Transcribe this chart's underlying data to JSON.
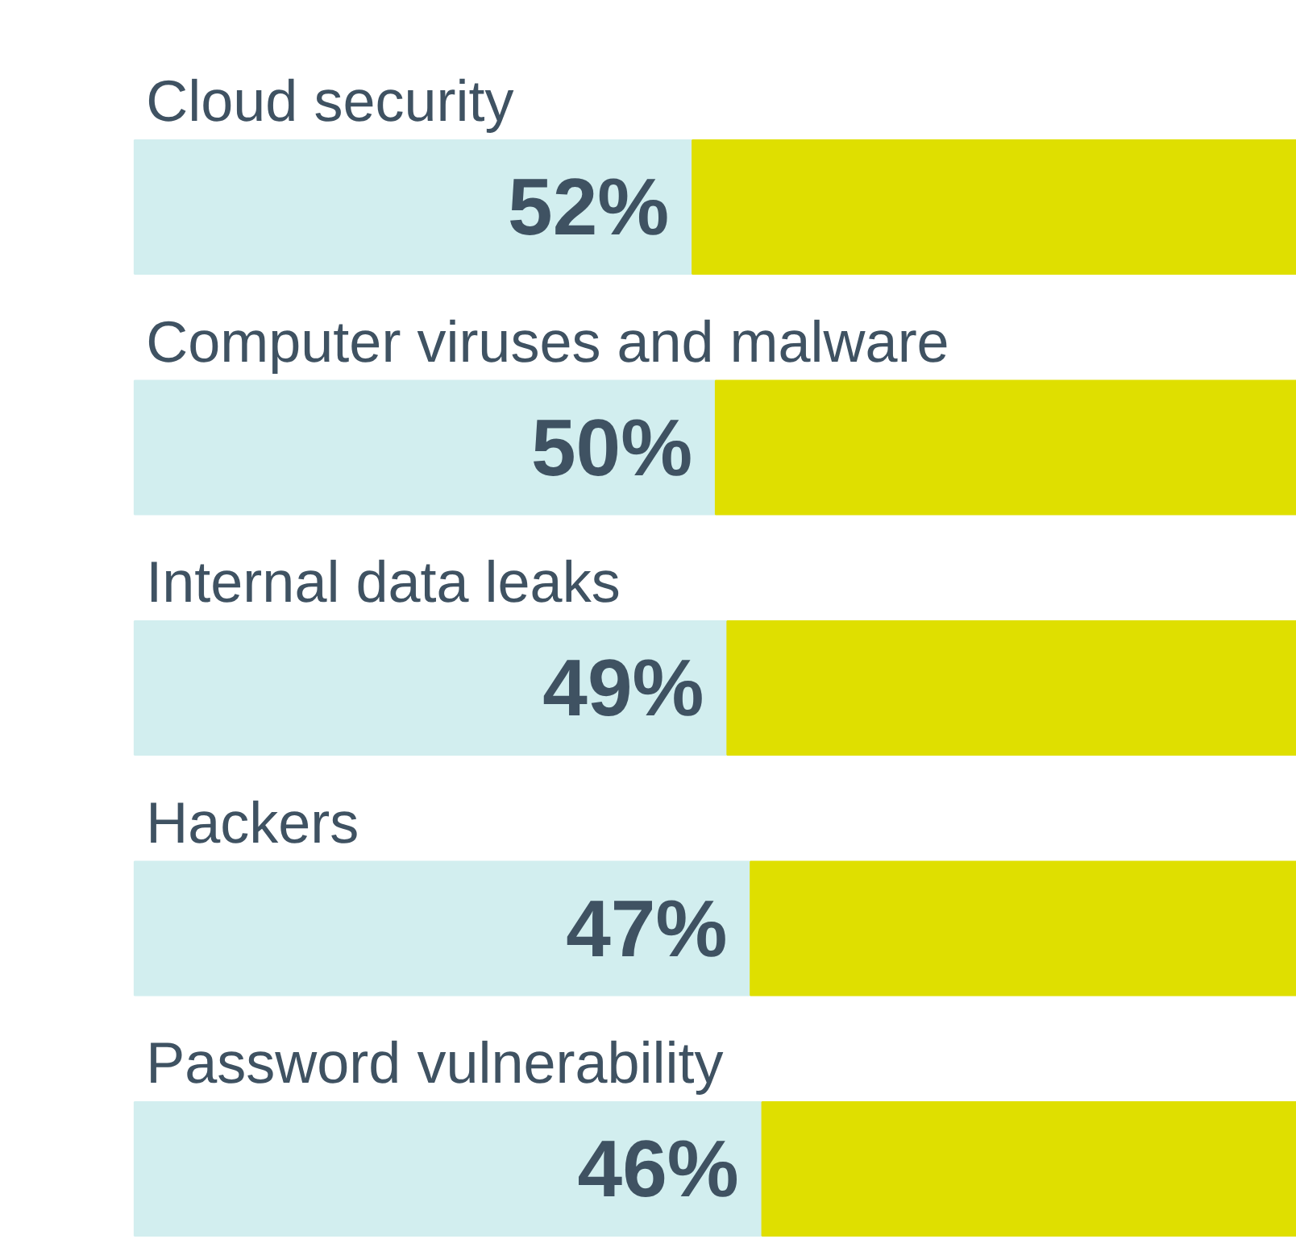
{
  "chart_data": {
    "type": "bar",
    "orientation": "horizontal",
    "stacked": true,
    "categories": [
      "Cloud security",
      "Computer viruses and malware",
      "Internal data leaks",
      "Hackers",
      "Password vulnerability"
    ],
    "series": [
      {
        "color": "#d2eeef",
        "values": [
          48,
          50,
          51,
          53,
          54
        ]
      },
      {
        "color": "#dfdf00",
        "values": [
          52,
          50,
          49,
          47,
          46
        ],
        "value_labels": [
          "52%",
          "50%",
          "49%",
          "47%",
          "46%"
        ]
      }
    ],
    "tick_labels": false,
    "grid": false
  }
}
